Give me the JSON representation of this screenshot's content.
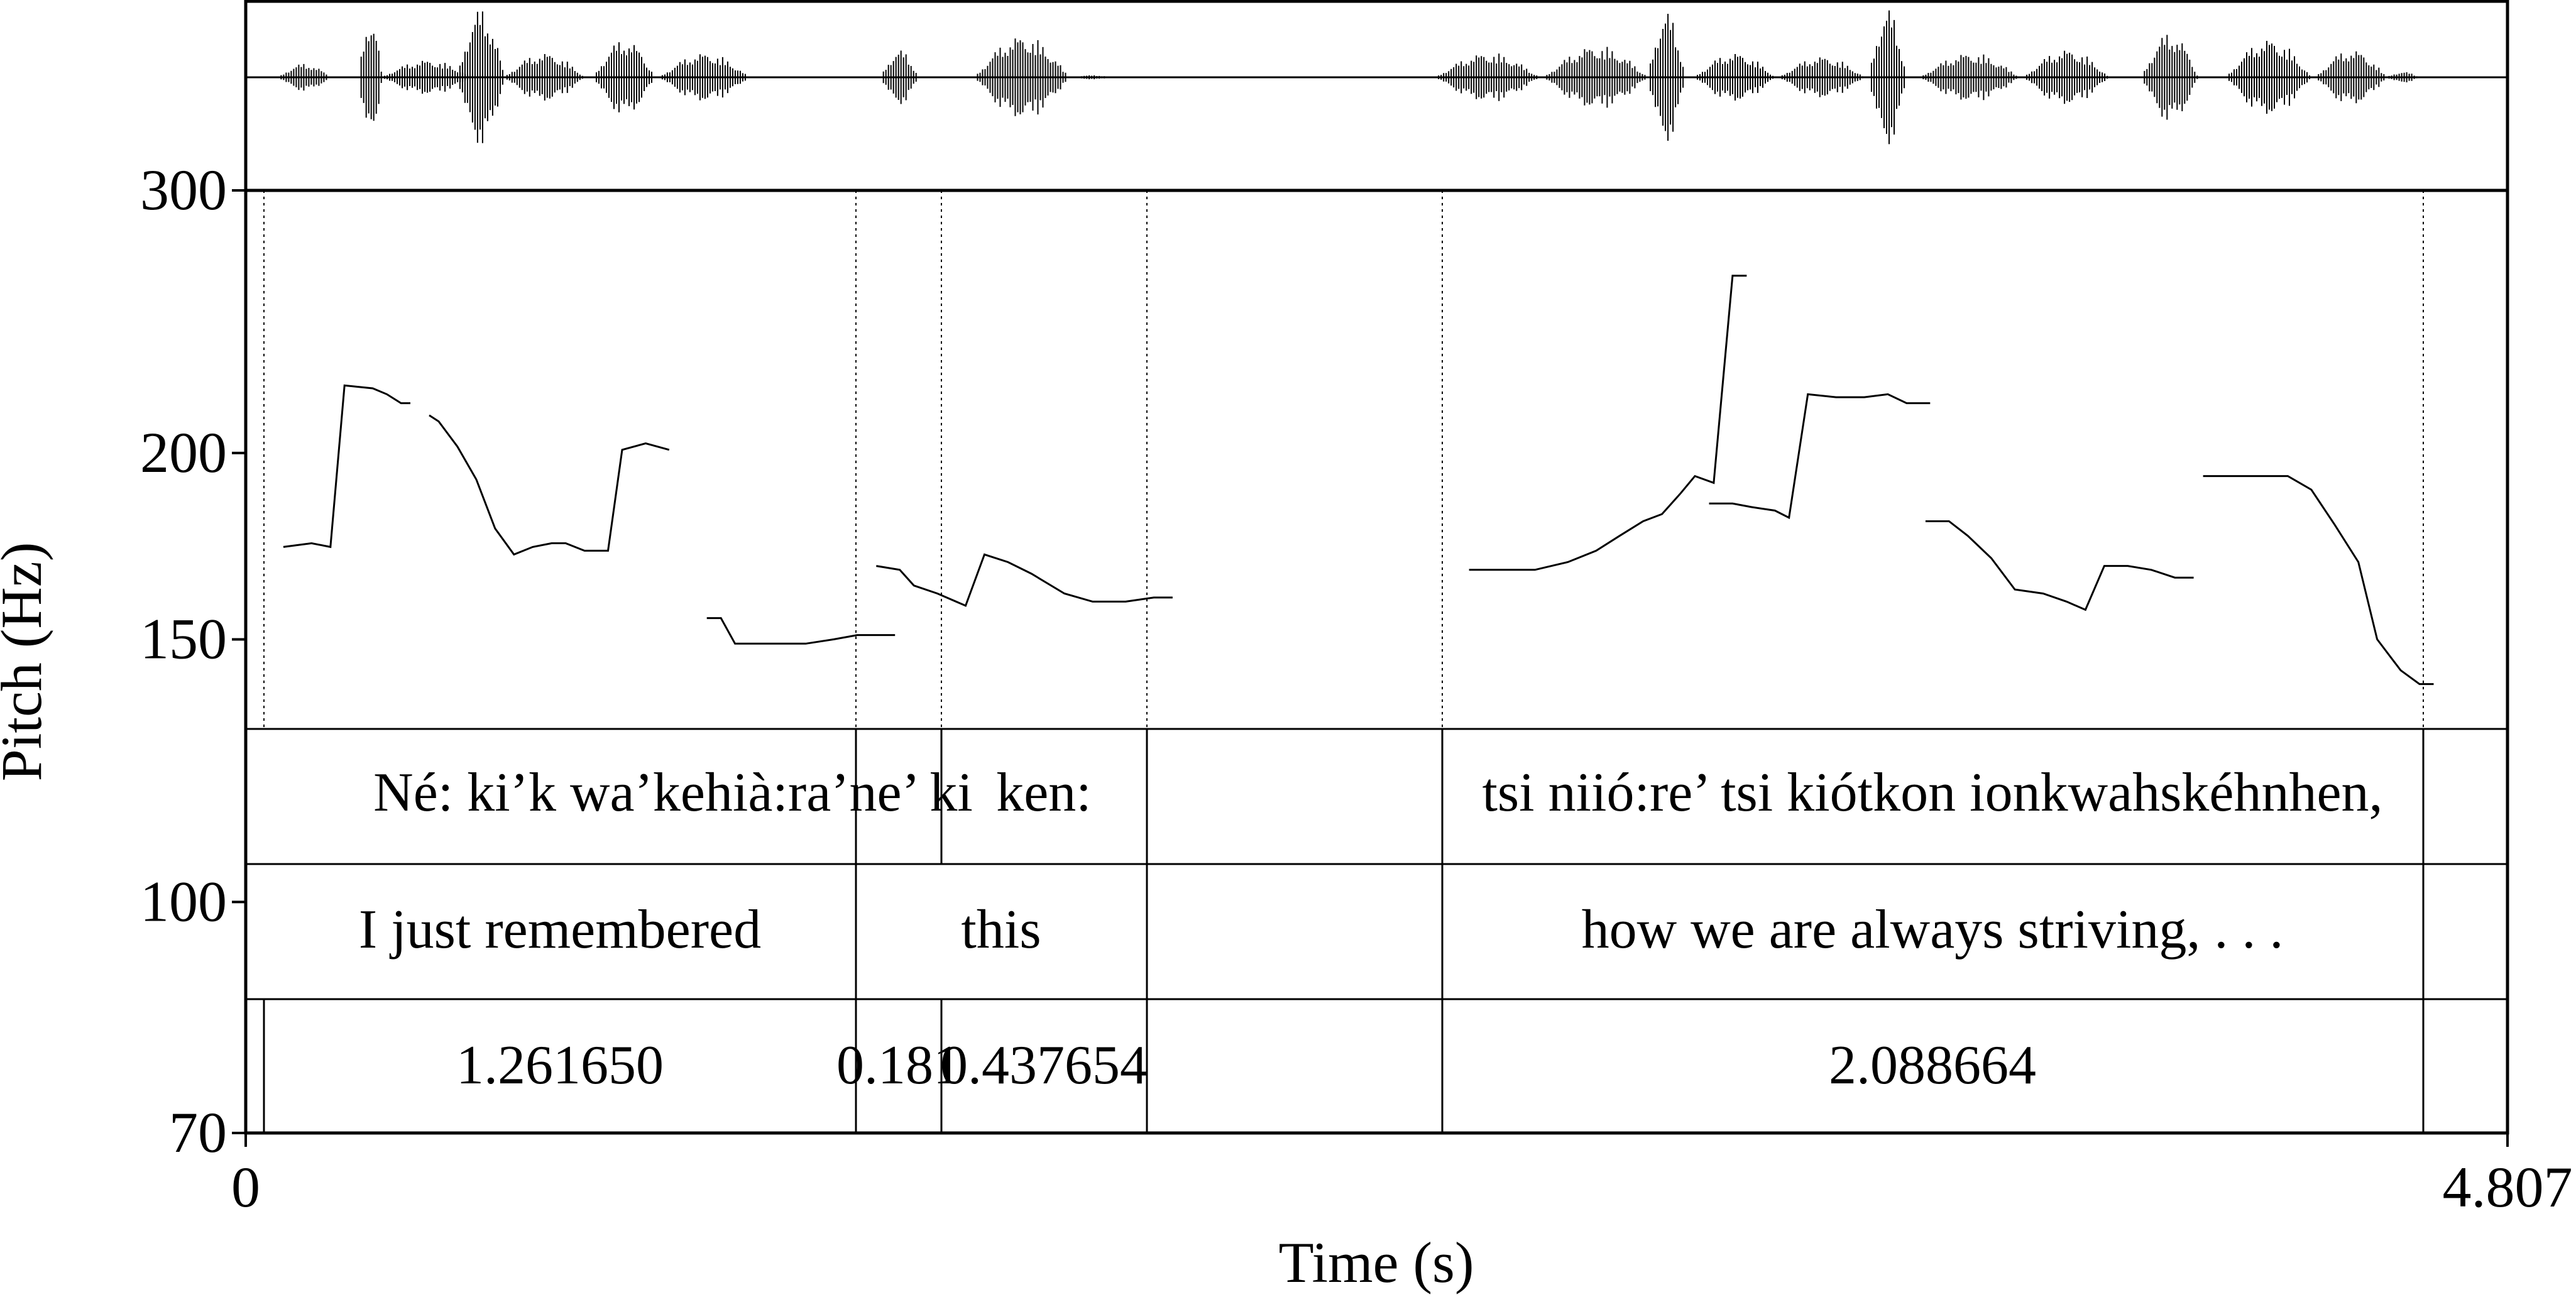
{
  "chart_data": {
    "type": "line",
    "xlabel": "Time (s)",
    "ylabel": "Pitch (Hz)",
    "xlim": [
      0,
      4.807
    ],
    "ylim": [
      70,
      300
    ],
    "y_scale": "log",
    "x_tick_labels": [
      "0",
      "4.807"
    ],
    "y_ticks": [
      {
        "value": 300,
        "label": "300"
      },
      {
        "value": 200,
        "label": "200"
      },
      {
        "value": 150,
        "label": "150"
      },
      {
        "value": 100,
        "label": "100"
      },
      {
        "value": 70,
        "label": "70"
      }
    ],
    "pitch_segments": [
      [
        [
          0.08,
          173
        ],
        [
          0.14,
          174
        ],
        [
          0.18,
          173
        ],
        [
          0.21,
          222
        ],
        [
          0.27,
          221
        ],
        [
          0.3,
          219
        ],
        [
          0.33,
          216
        ],
        [
          0.35,
          216
        ]
      ],
      [
        [
          0.39,
          212
        ],
        [
          0.41,
          210
        ],
        [
          0.45,
          202
        ],
        [
          0.49,
          192
        ],
        [
          0.53,
          178
        ],
        [
          0.57,
          171
        ],
        [
          0.61,
          173
        ],
        [
          0.65,
          174
        ],
        [
          0.68,
          174
        ],
        [
          0.72,
          172
        ],
        [
          0.77,
          172
        ],
        [
          0.8,
          201
        ],
        [
          0.85,
          203
        ],
        [
          0.9,
          201
        ]
      ],
      [
        [
          0.98,
          155
        ],
        [
          1.01,
          155
        ],
        [
          1.04,
          149
        ],
        [
          1.11,
          149
        ],
        [
          1.19,
          149
        ],
        [
          1.25,
          150
        ],
        [
          1.3,
          151
        ],
        [
          1.35,
          151
        ],
        [
          1.38,
          151
        ]
      ],
      [
        [
          1.34,
          168
        ],
        [
          1.39,
          167
        ],
        [
          1.42,
          163
        ],
        [
          1.47,
          161
        ],
        [
          1.53,
          158
        ],
        [
          1.57,
          171
        ],
        [
          1.62,
          169
        ],
        [
          1.67,
          166
        ],
        [
          1.74,
          161
        ],
        [
          1.8,
          159
        ],
        [
          1.87,
          159
        ],
        [
          1.93,
          160
        ],
        [
          1.97,
          160
        ]
      ],
      [
        [
          2.6,
          167
        ],
        [
          2.67,
          167
        ],
        [
          2.74,
          167
        ],
        [
          2.81,
          169
        ],
        [
          2.87,
          172
        ],
        [
          2.92,
          176
        ],
        [
          2.97,
          180
        ],
        [
          3.01,
          182
        ],
        [
          3.05,
          188
        ],
        [
          3.08,
          193
        ],
        [
          3.12,
          191
        ],
        [
          3.16,
          263
        ],
        [
          3.19,
          263
        ]
      ],
      [
        [
          3.11,
          185
        ],
        [
          3.16,
          185
        ],
        [
          3.2,
          184
        ],
        [
          3.25,
          183
        ],
        [
          3.28,
          181
        ],
        [
          3.32,
          219
        ],
        [
          3.38,
          218
        ],
        [
          3.44,
          218
        ],
        [
          3.49,
          219
        ],
        [
          3.53,
          216
        ],
        [
          3.58,
          216
        ]
      ],
      [
        [
          3.57,
          180
        ],
        [
          3.62,
          180
        ],
        [
          3.66,
          176
        ],
        [
          3.71,
          170
        ],
        [
          3.76,
          162
        ],
        [
          3.82,
          161
        ],
        [
          3.87,
          159
        ],
        [
          3.91,
          157
        ],
        [
          3.95,
          168
        ],
        [
          4.0,
          168
        ],
        [
          4.05,
          167
        ],
        [
          4.1,
          165
        ],
        [
          4.14,
          165
        ]
      ],
      [
        [
          4.16,
          193
        ],
        [
          4.2,
          193
        ],
        [
          4.26,
          193
        ],
        [
          4.31,
          193
        ],
        [
          4.34,
          193
        ],
        [
          4.39,
          189
        ],
        [
          4.44,
          179
        ],
        [
          4.49,
          169
        ],
        [
          4.53,
          150
        ],
        [
          4.58,
          143
        ],
        [
          4.62,
          140
        ],
        [
          4.65,
          140
        ]
      ]
    ]
  },
  "annotation": {
    "tiers": [
      {
        "intervals": [
          {
            "text": "Né: ki’k wa’kehià:ra’ne’ ki"
          },
          {
            "text": "ken:"
          },
          {
            "text": ""
          },
          {
            "text": "tsi niió:re’ tsi kiótkon ionkwahskéhnhen,"
          },
          {
            "text": ""
          }
        ]
      },
      {
        "intervals": [
          {
            "text": "I just remembered"
          },
          {
            "text": "this"
          },
          {
            "text": ""
          },
          {
            "text": "how we are always striving, . . ."
          },
          {
            "text": ""
          }
        ]
      },
      {
        "intervals": [
          {
            "text": "1.261650"
          },
          {
            "text": "0.181"
          },
          {
            "text": "0.437654"
          },
          {
            "text": ""
          },
          {
            "text": "2.088664"
          },
          {
            "text": ""
          }
        ]
      }
    ]
  }
}
